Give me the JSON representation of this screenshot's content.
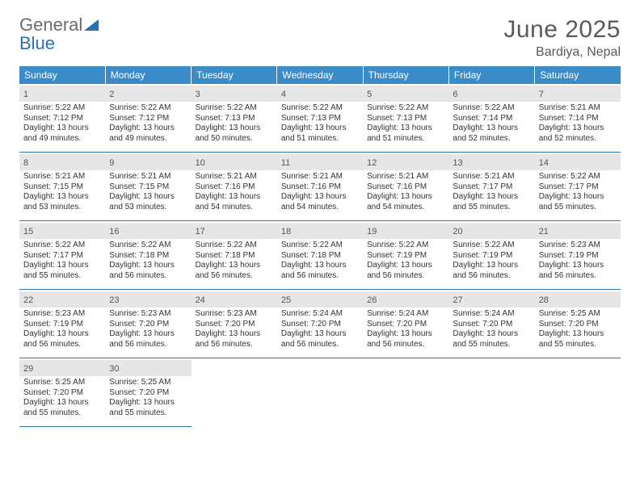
{
  "logo": {
    "text1": "General",
    "text2": "Blue"
  },
  "title": "June 2025",
  "location": "Bardiya, Nepal",
  "colors": {
    "header_bg": "#3b8bc9",
    "header_text": "#ffffff",
    "row_divider": "#2f6fa8",
    "daynum_bg": "#e6e6e6",
    "text": "#333333",
    "logo_gray": "#6b6b6b",
    "logo_blue": "#2a6fb5"
  },
  "weekdays": [
    "Sunday",
    "Monday",
    "Tuesday",
    "Wednesday",
    "Thursday",
    "Friday",
    "Saturday"
  ],
  "weeks": [
    [
      {
        "day": "1",
        "sunrise": "Sunrise: 5:22 AM",
        "sunset": "Sunset: 7:12 PM",
        "dl1": "Daylight: 13 hours",
        "dl2": "and 49 minutes."
      },
      {
        "day": "2",
        "sunrise": "Sunrise: 5:22 AM",
        "sunset": "Sunset: 7:12 PM",
        "dl1": "Daylight: 13 hours",
        "dl2": "and 49 minutes."
      },
      {
        "day": "3",
        "sunrise": "Sunrise: 5:22 AM",
        "sunset": "Sunset: 7:13 PM",
        "dl1": "Daylight: 13 hours",
        "dl2": "and 50 minutes."
      },
      {
        "day": "4",
        "sunrise": "Sunrise: 5:22 AM",
        "sunset": "Sunset: 7:13 PM",
        "dl1": "Daylight: 13 hours",
        "dl2": "and 51 minutes."
      },
      {
        "day": "5",
        "sunrise": "Sunrise: 5:22 AM",
        "sunset": "Sunset: 7:13 PM",
        "dl1": "Daylight: 13 hours",
        "dl2": "and 51 minutes."
      },
      {
        "day": "6",
        "sunrise": "Sunrise: 5:22 AM",
        "sunset": "Sunset: 7:14 PM",
        "dl1": "Daylight: 13 hours",
        "dl2": "and 52 minutes."
      },
      {
        "day": "7",
        "sunrise": "Sunrise: 5:21 AM",
        "sunset": "Sunset: 7:14 PM",
        "dl1": "Daylight: 13 hours",
        "dl2": "and 52 minutes."
      }
    ],
    [
      {
        "day": "8",
        "sunrise": "Sunrise: 5:21 AM",
        "sunset": "Sunset: 7:15 PM",
        "dl1": "Daylight: 13 hours",
        "dl2": "and 53 minutes."
      },
      {
        "day": "9",
        "sunrise": "Sunrise: 5:21 AM",
        "sunset": "Sunset: 7:15 PM",
        "dl1": "Daylight: 13 hours",
        "dl2": "and 53 minutes."
      },
      {
        "day": "10",
        "sunrise": "Sunrise: 5:21 AM",
        "sunset": "Sunset: 7:16 PM",
        "dl1": "Daylight: 13 hours",
        "dl2": "and 54 minutes."
      },
      {
        "day": "11",
        "sunrise": "Sunrise: 5:21 AM",
        "sunset": "Sunset: 7:16 PM",
        "dl1": "Daylight: 13 hours",
        "dl2": "and 54 minutes."
      },
      {
        "day": "12",
        "sunrise": "Sunrise: 5:21 AM",
        "sunset": "Sunset: 7:16 PM",
        "dl1": "Daylight: 13 hours",
        "dl2": "and 54 minutes."
      },
      {
        "day": "13",
        "sunrise": "Sunrise: 5:21 AM",
        "sunset": "Sunset: 7:17 PM",
        "dl1": "Daylight: 13 hours",
        "dl2": "and 55 minutes."
      },
      {
        "day": "14",
        "sunrise": "Sunrise: 5:22 AM",
        "sunset": "Sunset: 7:17 PM",
        "dl1": "Daylight: 13 hours",
        "dl2": "and 55 minutes."
      }
    ],
    [
      {
        "day": "15",
        "sunrise": "Sunrise: 5:22 AM",
        "sunset": "Sunset: 7:17 PM",
        "dl1": "Daylight: 13 hours",
        "dl2": "and 55 minutes."
      },
      {
        "day": "16",
        "sunrise": "Sunrise: 5:22 AM",
        "sunset": "Sunset: 7:18 PM",
        "dl1": "Daylight: 13 hours",
        "dl2": "and 56 minutes."
      },
      {
        "day": "17",
        "sunrise": "Sunrise: 5:22 AM",
        "sunset": "Sunset: 7:18 PM",
        "dl1": "Daylight: 13 hours",
        "dl2": "and 56 minutes."
      },
      {
        "day": "18",
        "sunrise": "Sunrise: 5:22 AM",
        "sunset": "Sunset: 7:18 PM",
        "dl1": "Daylight: 13 hours",
        "dl2": "and 56 minutes."
      },
      {
        "day": "19",
        "sunrise": "Sunrise: 5:22 AM",
        "sunset": "Sunset: 7:19 PM",
        "dl1": "Daylight: 13 hours",
        "dl2": "and 56 minutes."
      },
      {
        "day": "20",
        "sunrise": "Sunrise: 5:22 AM",
        "sunset": "Sunset: 7:19 PM",
        "dl1": "Daylight: 13 hours",
        "dl2": "and 56 minutes."
      },
      {
        "day": "21",
        "sunrise": "Sunrise: 5:23 AM",
        "sunset": "Sunset: 7:19 PM",
        "dl1": "Daylight: 13 hours",
        "dl2": "and 56 minutes."
      }
    ],
    [
      {
        "day": "22",
        "sunrise": "Sunrise: 5:23 AM",
        "sunset": "Sunset: 7:19 PM",
        "dl1": "Daylight: 13 hours",
        "dl2": "and 56 minutes."
      },
      {
        "day": "23",
        "sunrise": "Sunrise: 5:23 AM",
        "sunset": "Sunset: 7:20 PM",
        "dl1": "Daylight: 13 hours",
        "dl2": "and 56 minutes."
      },
      {
        "day": "24",
        "sunrise": "Sunrise: 5:23 AM",
        "sunset": "Sunset: 7:20 PM",
        "dl1": "Daylight: 13 hours",
        "dl2": "and 56 minutes."
      },
      {
        "day": "25",
        "sunrise": "Sunrise: 5:24 AM",
        "sunset": "Sunset: 7:20 PM",
        "dl1": "Daylight: 13 hours",
        "dl2": "and 56 minutes."
      },
      {
        "day": "26",
        "sunrise": "Sunrise: 5:24 AM",
        "sunset": "Sunset: 7:20 PM",
        "dl1": "Daylight: 13 hours",
        "dl2": "and 56 minutes."
      },
      {
        "day": "27",
        "sunrise": "Sunrise: 5:24 AM",
        "sunset": "Sunset: 7:20 PM",
        "dl1": "Daylight: 13 hours",
        "dl2": "and 55 minutes."
      },
      {
        "day": "28",
        "sunrise": "Sunrise: 5:25 AM",
        "sunset": "Sunset: 7:20 PM",
        "dl1": "Daylight: 13 hours",
        "dl2": "and 55 minutes."
      }
    ],
    [
      {
        "day": "29",
        "sunrise": "Sunrise: 5:25 AM",
        "sunset": "Sunset: 7:20 PM",
        "dl1": "Daylight: 13 hours",
        "dl2": "and 55 minutes."
      },
      {
        "day": "30",
        "sunrise": "Sunrise: 5:25 AM",
        "sunset": "Sunset: 7:20 PM",
        "dl1": "Daylight: 13 hours",
        "dl2": "and 55 minutes."
      },
      null,
      null,
      null,
      null,
      null
    ]
  ]
}
